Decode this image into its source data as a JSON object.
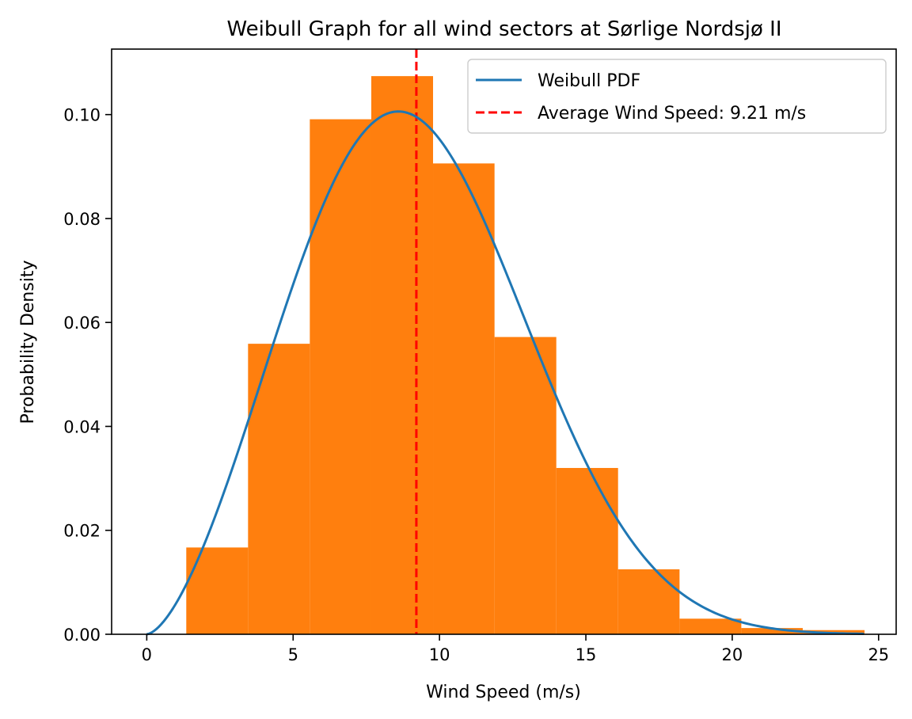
{
  "chart_data": {
    "type": "bar",
    "title": "Weibull Graph for all wind sectors at Sørlige Nordsjø II",
    "xlabel": "Wind Speed (m/s)",
    "ylabel": "Probability Density",
    "xlim": [
      -1.2,
      25.6
    ],
    "ylim": [
      0,
      0.1126
    ],
    "xticks": [
      0,
      5,
      10,
      15,
      20,
      25
    ],
    "xtick_labels": [
      "0",
      "5",
      "10",
      "15",
      "20",
      "25"
    ],
    "yticks": [
      0,
      0.02,
      0.04,
      0.06,
      0.08,
      0.1
    ],
    "ytick_labels": [
      "0.00",
      "0.02",
      "0.04",
      "0.06",
      "0.08",
      "0.10"
    ],
    "grid": false,
    "legend_position": "top-right",
    "histogram": {
      "color": "#ff7f0e",
      "bin_edges": [
        1.35,
        3.46,
        5.57,
        7.67,
        9.78,
        11.88,
        13.99,
        16.1,
        18.2,
        20.31,
        22.41,
        24.52
      ],
      "values": [
        0.0167,
        0.0559,
        0.0991,
        0.1074,
        0.0906,
        0.0572,
        0.032,
        0.0125,
        0.003,
        0.0012,
        0.0008
      ]
    },
    "series": [
      {
        "name": "Weibull PDF",
        "type": "line",
        "color": "#1f77b4",
        "shape_k": 2.6,
        "scale_c": 10.36,
        "x": [
          0,
          1,
          2,
          3,
          4,
          5,
          6,
          7,
          8,
          9,
          10,
          11,
          12,
          13,
          14,
          15,
          16,
          17,
          18,
          19,
          20,
          21,
          22,
          23,
          24,
          24.5
        ],
        "y": [
          0,
          0.0058,
          0.0175,
          0.0334,
          0.052,
          0.0711,
          0.088,
          0.0995,
          0.105,
          0.104,
          0.0975,
          0.086,
          0.0722,
          0.0573,
          0.0429,
          0.0303,
          0.02,
          0.0124,
          0.0072,
          0.0039,
          0.002,
          0.001,
          0.0004,
          0.0002,
          0.0001,
          5e-05
        ]
      }
    ],
    "average_line": {
      "name": "Average Wind Speed: 9.21 m/s",
      "x": 9.21,
      "color": "#ff0000",
      "style": "dashed"
    }
  }
}
